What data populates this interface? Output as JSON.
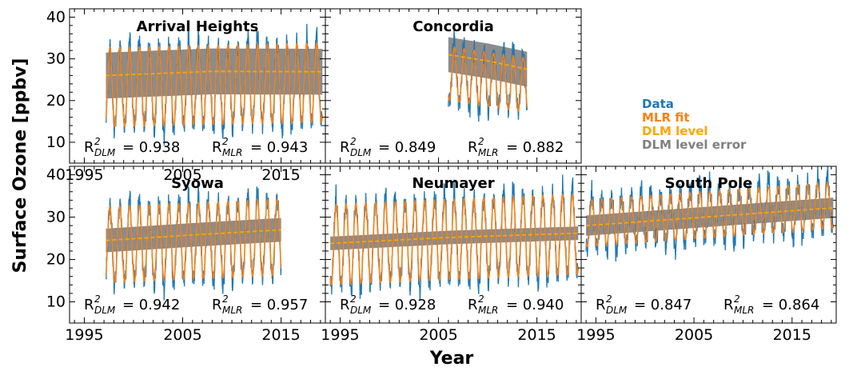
{
  "figure": {
    "ylabel": "Surface Ozone [ppbv]",
    "xlabel": "Year",
    "legend": {
      "placement": "upper-right",
      "entries": [
        {
          "label": "Data",
          "color": "#1f77b4"
        },
        {
          "label": "MLR fit",
          "color": "#ff7f0e"
        },
        {
          "label": "DLM level",
          "color": "#ffa500"
        },
        {
          "label": "DLM level error",
          "color": "#808080"
        }
      ]
    }
  },
  "chart_data": [
    {
      "type": "line",
      "title": "Arrival Heights",
      "xlim": [
        1993.5,
        2019.5
      ],
      "ylim": [
        5,
        42
      ],
      "xticks": [
        "1995",
        "2005",
        "2015"
      ],
      "yticks": [
        "10",
        "20",
        "30",
        "40"
      ],
      "x_range": [
        1997.2,
        2019.2
      ],
      "mean": 23.2,
      "amplitude": 9.5,
      "trend_per_year": 0.05,
      "level": {
        "x": [
          1997.2,
          2008,
          2019.2
        ],
        "y": [
          26.0,
          27.0,
          26.9
        ]
      },
      "level_error_halfwidth": 5.5,
      "r2_dlm_label": "R",
      "r2_dlm_sub": "DLM",
      "r2_dlm_sup": "2",
      "r2_dlm_value": "= 0.938",
      "r2_mlr_label": "R",
      "r2_mlr_sub": "MLR",
      "r2_mlr_sup": "2",
      "r2_mlr_value": "= 0.943"
    },
    {
      "type": "line",
      "title": "Concordia",
      "xlim": [
        1993.5,
        2019.5
      ],
      "ylim": [
        5,
        42
      ],
      "x_range": [
        2006.0,
        2014.0
      ],
      "mean": 26.5,
      "amplitude": 6.5,
      "trend_per_year": -0.35,
      "level": {
        "x": [
          2006.0,
          2010,
          2014.0
        ],
        "y": [
          31.0,
          29.5,
          27.5
        ]
      },
      "level_error_halfwidth": 4.2,
      "r2_dlm_label": "R",
      "r2_dlm_sub": "DLM",
      "r2_dlm_sup": "2",
      "r2_dlm_value": "= 0.849",
      "r2_mlr_label": "R",
      "r2_mlr_sub": "MLR",
      "r2_mlr_sup": "2",
      "r2_mlr_value": "= 0.882"
    },
    {
      "type": "line",
      "title": "Syowa",
      "xlim": [
        1993.5,
        2019.5
      ],
      "ylim": [
        5,
        42
      ],
      "xticks": [
        "1995",
        "2005",
        "2015"
      ],
      "yticks": [
        "10",
        "20",
        "30",
        "40"
      ],
      "x_range": [
        1997.2,
        2015.0
      ],
      "mean": 23.5,
      "amplitude": 9.0,
      "trend_per_year": 0.1,
      "level": {
        "x": [
          1997.2,
          2006,
          2015.0
        ],
        "y": [
          24.5,
          25.8,
          27.0
        ]
      },
      "level_error_halfwidth": 2.8,
      "r2_dlm_label": "R",
      "r2_dlm_sub": "DLM",
      "r2_dlm_sup": "2",
      "r2_dlm_value": "= 0.942",
      "r2_mlr_label": "R",
      "r2_mlr_sub": "MLR",
      "r2_mlr_sup": "2",
      "r2_mlr_value": "= 0.957"
    },
    {
      "type": "line",
      "title": "Neumayer",
      "xlim": [
        1993.5,
        2019.5
      ],
      "ylim": [
        5,
        42
      ],
      "xticks": [
        "1995",
        "2005",
        "2015"
      ],
      "x_range": [
        1994.0,
        2019.2
      ],
      "mean": 23.5,
      "amplitude": 9.5,
      "trend_per_year": 0.1,
      "level": {
        "x": [
          1994.0,
          2006,
          2019.2
        ],
        "y": [
          23.8,
          25.2,
          26.2
        ]
      },
      "level_error_halfwidth": 1.6,
      "r2_dlm_label": "R",
      "r2_dlm_sub": "DLM",
      "r2_dlm_sup": "2",
      "r2_dlm_value": "= 0.928",
      "r2_mlr_label": "R",
      "r2_mlr_sub": "MLR",
      "r2_mlr_sup": "2",
      "r2_mlr_value": "= 0.940"
    },
    {
      "type": "line",
      "title": "South Pole",
      "xlim": [
        1993.5,
        2019.5
      ],
      "ylim": [
        5,
        42
      ],
      "xticks": [
        "1995",
        "2005",
        "2015"
      ],
      "x_range": [
        1994.0,
        2019.2
      ],
      "mean": 28.5,
      "amplitude": 5.5,
      "trend_per_year": 0.17,
      "level": {
        "x": [
          1994.0,
          2006,
          2019.2
        ],
        "y": [
          28.0,
          30.0,
          32.2
        ]
      },
      "level_error_halfwidth": 2.4,
      "r2_dlm_label": "R",
      "r2_dlm_sub": "DLM",
      "r2_dlm_sup": "2",
      "r2_dlm_value": "= 0.847",
      "r2_mlr_label": "R",
      "r2_mlr_sub": "MLR",
      "r2_mlr_sup": "2",
      "r2_mlr_value": "= 0.864"
    }
  ]
}
